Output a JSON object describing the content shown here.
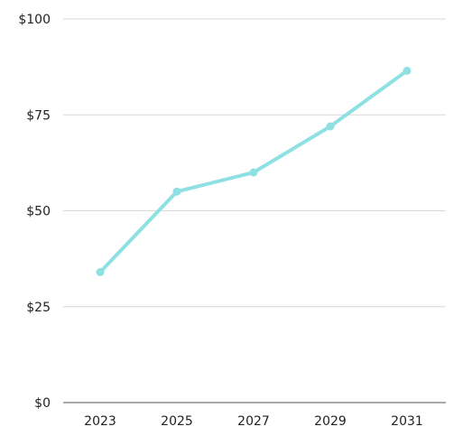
{
  "chart_data": {
    "type": "line",
    "title": "",
    "xlabel": "",
    "ylabel": "",
    "x": [
      "2023",
      "2025",
      "2027",
      "2029",
      "2031"
    ],
    "series": [
      {
        "values": [
          34,
          55,
          60,
          72,
          86.5
        ]
      }
    ],
    "ylim": [
      0,
      100
    ],
    "yticks": [
      0,
      25,
      50,
      75,
      100
    ],
    "ytick_labels": [
      "$0",
      "$25",
      "$50",
      "$75",
      "$100"
    ],
    "grid": "horizontal",
    "legend": "none",
    "colors": {
      "line": "#8ee0e3",
      "grid": "#d9d9d9",
      "axis": "#555555",
      "text": "#222222"
    }
  }
}
